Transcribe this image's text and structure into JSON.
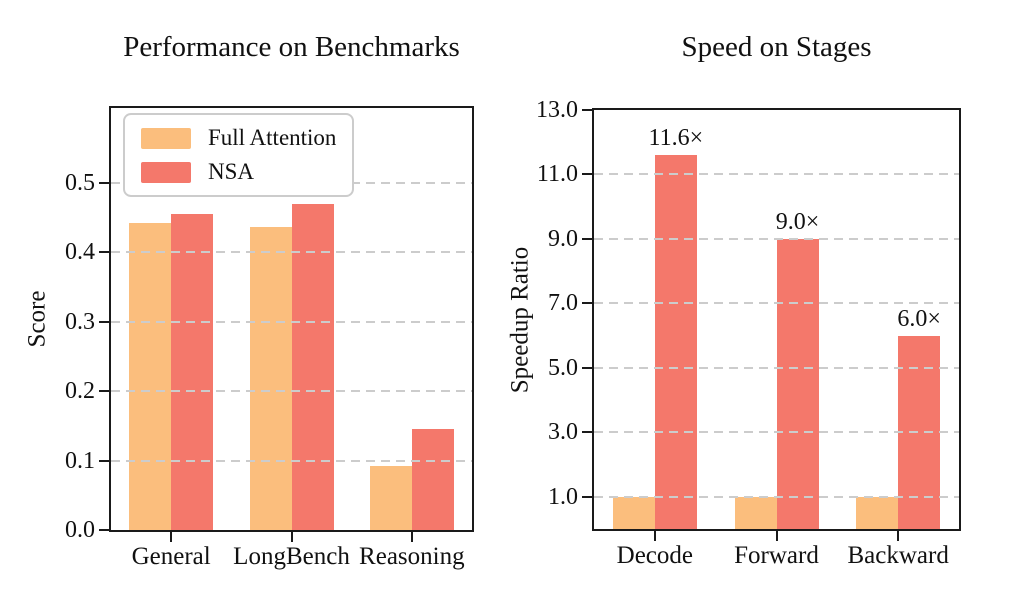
{
  "figure": {
    "background_color": "#ffffff",
    "frame_color": "#1a1a1a",
    "grid_color": "#cccccc",
    "text_color": "#111111"
  },
  "chart_data": [
    {
      "type": "bar",
      "title": "Performance on Benchmarks",
      "xlabel": "",
      "ylabel": "Score",
      "categories": [
        "General",
        "LongBench",
        "Reasoning"
      ],
      "series": [
        {
          "name": "Full Attention",
          "color": "#FBBE7D",
          "values": [
            0.443,
            0.437,
            0.092
          ]
        },
        {
          "name": "NSA",
          "color": "#F4786B",
          "values": [
            0.456,
            0.469,
            0.146
          ]
        }
      ],
      "ylim": [
        0,
        0.608
      ],
      "yticks": [
        0.0,
        0.1,
        0.2,
        0.3,
        0.4,
        0.5
      ],
      "ytick_labels": [
        "0.0",
        "0.1",
        "0.2",
        "0.3",
        "0.4",
        "0.5"
      ],
      "grid": "horizontal-dashed",
      "legend_position": "upper-left"
    },
    {
      "type": "bar",
      "title": "Speed on Stages",
      "xlabel": "",
      "ylabel": "Speedup Ratio",
      "categories": [
        "Decode",
        "Forward",
        "Backward"
      ],
      "series": [
        {
          "name": "Full Attention",
          "color": "#FBBE7D",
          "values": [
            1.0,
            1.0,
            1.0
          ]
        },
        {
          "name": "NSA",
          "color": "#F4786B",
          "values": [
            11.6,
            9.0,
            6.0
          ],
          "value_labels": [
            "11.6×",
            "9.0×",
            "6.0×"
          ]
        }
      ],
      "ylim": [
        0,
        13.0
      ],
      "yticks": [
        1.0,
        3.0,
        5.0,
        7.0,
        9.0,
        11.0,
        13.0
      ],
      "ytick_labels": [
        "1.0",
        "3.0",
        "5.0",
        "7.0",
        "9.0",
        "11.0",
        "13.0"
      ],
      "grid": "horizontal-dashed",
      "legend_position": null
    }
  ]
}
